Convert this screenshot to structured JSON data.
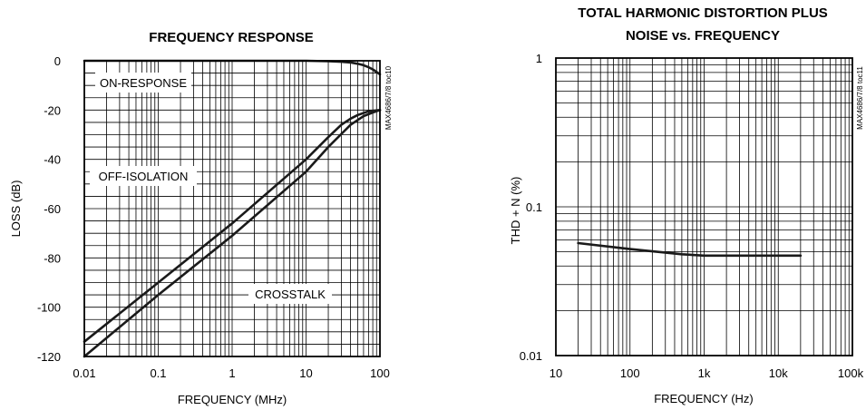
{
  "chart_data": [
    {
      "type": "line",
      "title": "FREQUENCY RESPONSE",
      "xlabel": "FREQUENCY (MHz)",
      "ylabel": "LOSS (dB)",
      "xscale": "log",
      "xlim": [
        0.01,
        100
      ],
      "ylim": [
        -120,
        0
      ],
      "xticks": [
        0.01,
        0.1,
        1,
        10,
        100
      ],
      "xtick_labels": [
        "0.01",
        "0.1",
        "1",
        "10",
        "100"
      ],
      "yticks": [
        0,
        -20,
        -40,
        -60,
        -80,
        -100,
        -120
      ],
      "ytick_labels": [
        "0",
        "-20",
        "-40",
        "-60",
        "-80",
        "-100",
        "-120"
      ],
      "grid": true,
      "code": "MAX4686/7/8 toc10",
      "annotations": [
        {
          "text": "ON-RESPONSE",
          "series": 0
        },
        {
          "text": "OFF-ISOLATION",
          "series": 1
        },
        {
          "text": "CROSSTALK",
          "series": 2
        }
      ],
      "series": [
        {
          "x": [
            0.01,
            1,
            10,
            20,
            30,
            40,
            50,
            60,
            70,
            80,
            100
          ],
          "y": [
            0,
            0,
            0,
            -0.2,
            -0.4,
            -0.7,
            -1.2,
            -1.8,
            -2.6,
            -3.5,
            -5.5
          ]
        },
        {
          "x": [
            0.01,
            0.1,
            1,
            10,
            20,
            30,
            40,
            50,
            70,
            100
          ],
          "y": [
            -114,
            -90,
            -66,
            -40,
            -31,
            -26,
            -23.5,
            -22,
            -20.5,
            -20
          ]
        },
        {
          "x": [
            0.01,
            0.1,
            1,
            10,
            20,
            40,
            60,
            80,
            100
          ],
          "y": [
            -120,
            -95,
            -71,
            -45,
            -35,
            -26,
            -22.5,
            -21,
            -20
          ]
        }
      ]
    },
    {
      "type": "line",
      "title": "TOTAL HARMONIC DISTORTION PLUS NOISE vs. FREQUENCY",
      "xlabel": "FREQUENCY (Hz)",
      "ylabel": "THD + N (%)",
      "xscale": "log",
      "yscale": "log",
      "xlim": [
        10,
        100000
      ],
      "ylim": [
        0.01,
        1
      ],
      "xticks": [
        10,
        100,
        1000,
        10000,
        100000
      ],
      "xtick_labels": [
        "10",
        "100",
        "1k",
        "10k",
        "100k"
      ],
      "yticks": [
        1,
        0.1,
        0.01
      ],
      "ytick_labels": [
        "1",
        "0.1",
        "0.01"
      ],
      "grid": true,
      "code": "MAX4686/7/8 toc11",
      "series": [
        {
          "x": [
            20,
            100,
            500,
            1000,
            5000,
            20000
          ],
          "y": [
            0.057,
            0.052,
            0.048,
            0.047,
            0.047,
            0.047
          ]
        }
      ]
    }
  ]
}
